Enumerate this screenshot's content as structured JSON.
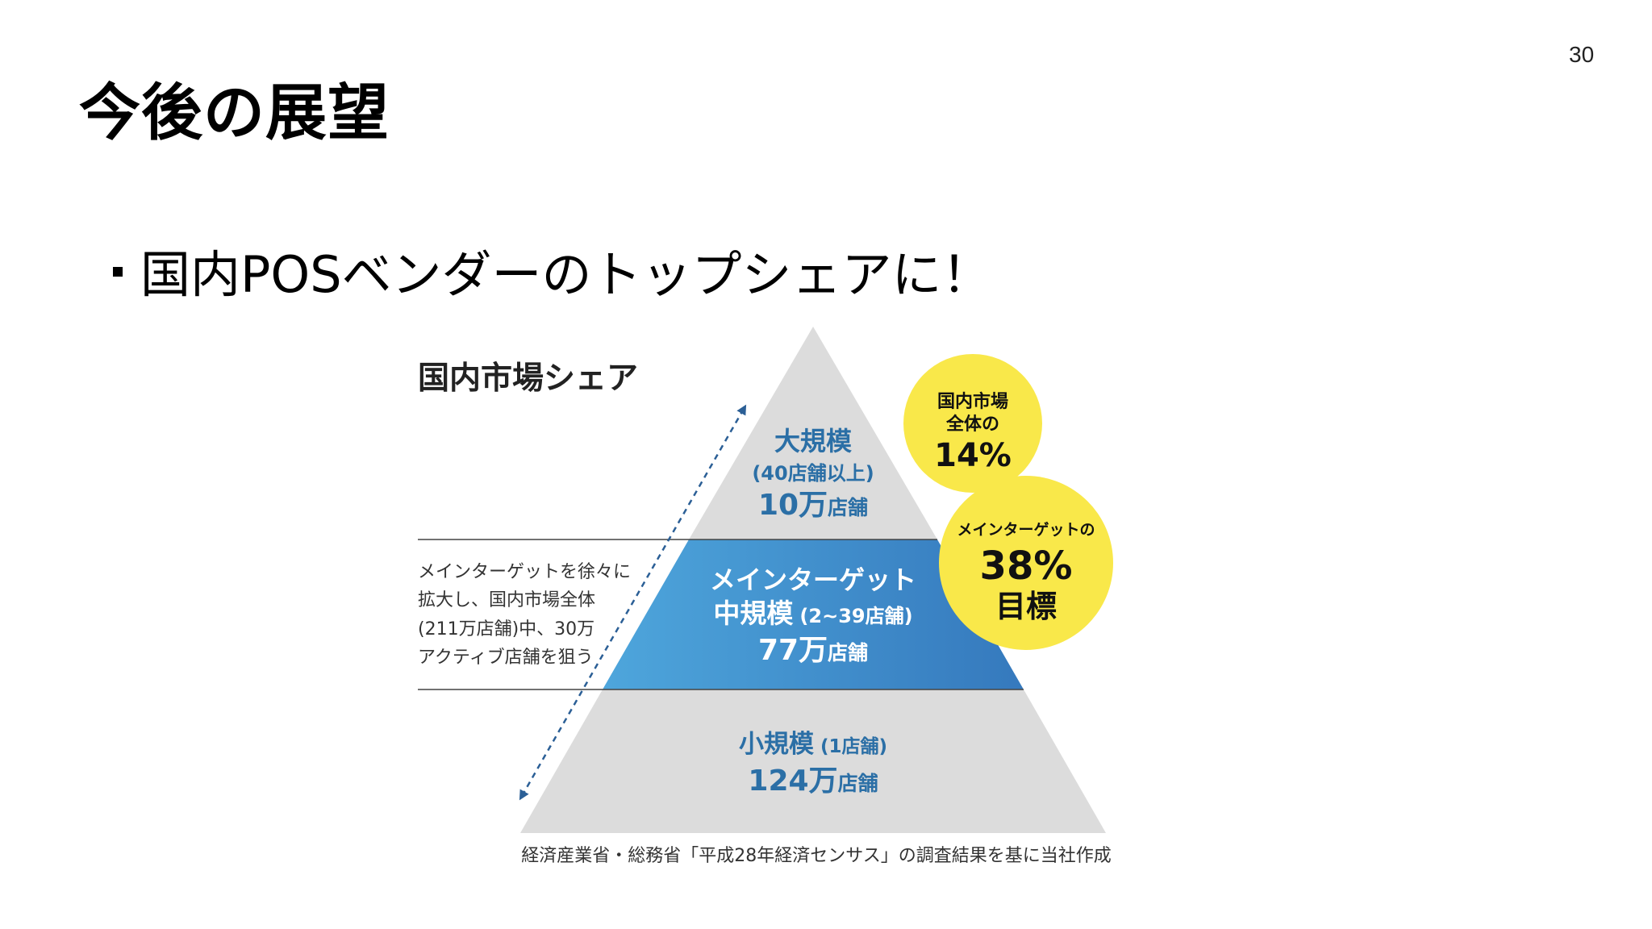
{
  "page": {
    "number": "30",
    "title": "今後の展望",
    "bullet": "国内POSベンダーのトップシェアに！"
  },
  "figure": {
    "title": "国内市場シェア",
    "tiers": {
      "large": {
        "name": "大規模",
        "range": "(40店舗以上)",
        "count_num": "10万",
        "count_unit": "店舗"
      },
      "middle": {
        "line1": "メインターゲット",
        "name": "中規模",
        "range": "(2~39店舗)",
        "count_num": "77万",
        "count_unit": "店舗"
      },
      "small": {
        "name": "小規模",
        "range": "(1店舗)",
        "count_num": "124万",
        "count_unit": "店舗"
      }
    },
    "side_note": [
      "メインターゲットを徐々に",
      "拡大し、国内市場全体",
      "(211万店舗)中、30万",
      "アクティブ店舗を狙う"
    ],
    "badges": {
      "market": {
        "line1": "国内市場",
        "line2": "全体の",
        "value": "14%"
      },
      "target": {
        "line1": "メインターゲットの",
        "value": "38%",
        "line3": "目標"
      }
    },
    "source": "経済産業省・総務省「平成28年経済センサス」の調査結果を基に当社作成",
    "colors": {
      "gray_tier": "#dcdcdc",
      "blue_tier_light": "#4a9fd6",
      "blue_tier_dark": "#3a7fc0",
      "tier_text": "#2b6fa6",
      "badge_yellow": "#f9e84a",
      "arrow": "#2b5f96"
    }
  }
}
